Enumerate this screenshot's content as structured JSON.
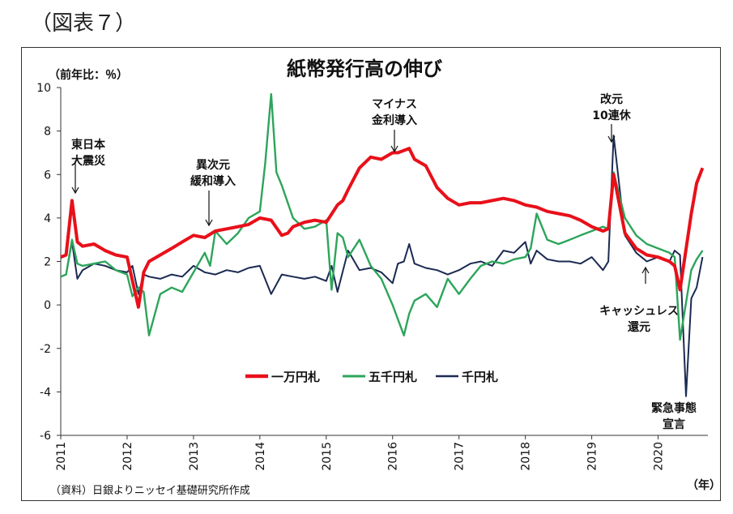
{
  "figure_label": "（図表７）",
  "chart_data": {
    "type": "line",
    "title": "紙幣発行高の伸び",
    "ylabel": "（前年比：％）",
    "xlabel": "（年）",
    "source": "（資料）日銀よりニッセイ基礎研究所作成",
    "ylim": [
      -6,
      10
    ],
    "yticks": [
      "10",
      "8",
      "6",
      "4",
      "2",
      "0",
      "-2",
      "-4",
      "-6"
    ],
    "xticks": [
      "2011",
      "2012",
      "2013",
      "2014",
      "2015",
      "2016",
      "2017",
      "2018",
      "2019",
      "2020"
    ],
    "xlim": [
      2011.0,
      2020.75
    ],
    "grid": false,
    "legend": {
      "placement": "lower-center",
      "entries": [
        "一万円札",
        "五千円札",
        "千円札"
      ]
    },
    "colors": {
      "10000": "#e8101a",
      "5000": "#2ca55a",
      "1000": "#1b2a52"
    },
    "series": [
      {
        "name": "一万円札",
        "x": [
          2011.0,
          2011.08,
          2011.17,
          2011.25,
          2011.33,
          2011.5,
          2011.67,
          2011.83,
          2012.0,
          2012.17,
          2012.25,
          2012.33,
          2012.5,
          2012.67,
          2012.83,
          2013.0,
          2013.17,
          2013.33,
          2013.5,
          2013.67,
          2013.83,
          2014.0,
          2014.17,
          2014.33,
          2014.42,
          2014.5,
          2014.67,
          2014.83,
          2015.0,
          2015.17,
          2015.25,
          2015.33,
          2015.5,
          2015.67,
          2015.83,
          2016.0,
          2016.08,
          2016.25,
          2016.33,
          2016.5,
          2016.67,
          2016.83,
          2017.0,
          2017.17,
          2017.33,
          2017.5,
          2017.67,
          2017.83,
          2018.0,
          2018.17,
          2018.33,
          2018.5,
          2018.67,
          2018.83,
          2019.0,
          2019.17,
          2019.25,
          2019.33,
          2019.5,
          2019.67,
          2019.83,
          2020.0,
          2020.17,
          2020.25,
          2020.33,
          2020.5,
          2020.58,
          2020.67
        ],
        "values": [
          2.2,
          2.3,
          4.8,
          2.9,
          2.7,
          2.8,
          2.5,
          2.3,
          2.2,
          -0.1,
          1.5,
          2.0,
          2.3,
          2.6,
          2.9,
          3.2,
          3.1,
          3.4,
          3.5,
          3.6,
          3.7,
          4.0,
          3.9,
          3.2,
          3.3,
          3.6,
          3.8,
          3.9,
          3.8,
          4.6,
          4.8,
          5.3,
          6.3,
          6.8,
          6.7,
          7.0,
          7.0,
          7.2,
          6.7,
          6.4,
          5.4,
          4.9,
          4.6,
          4.7,
          4.7,
          4.8,
          4.9,
          4.8,
          4.6,
          4.5,
          4.3,
          4.2,
          4.1,
          3.9,
          3.6,
          3.4,
          3.5,
          6.0,
          3.3,
          2.6,
          2.3,
          2.2,
          2.0,
          1.8,
          0.7,
          4.2,
          5.6,
          6.3
        ]
      },
      {
        "name": "五千円札",
        "x": [
          2011.0,
          2011.08,
          2011.17,
          2011.25,
          2011.33,
          2011.5,
          2011.67,
          2011.83,
          2012.0,
          2012.08,
          2012.17,
          2012.25,
          2012.33,
          2012.5,
          2012.67,
          2012.83,
          2013.0,
          2013.17,
          2013.25,
          2013.33,
          2013.5,
          2013.67,
          2013.83,
          2014.0,
          2014.08,
          2014.17,
          2014.25,
          2014.33,
          2014.5,
          2014.67,
          2014.83,
          2015.0,
          2015.08,
          2015.17,
          2015.25,
          2015.33,
          2015.5,
          2015.67,
          2015.83,
          2016.0,
          2016.17,
          2016.25,
          2016.33,
          2016.5,
          2016.67,
          2016.83,
          2017.0,
          2017.17,
          2017.33,
          2017.5,
          2017.67,
          2017.83,
          2018.0,
          2018.08,
          2018.17,
          2018.33,
          2018.5,
          2018.67,
          2018.83,
          2019.0,
          2019.17,
          2019.25,
          2019.33,
          2019.5,
          2019.67,
          2019.83,
          2020.0,
          2020.17,
          2020.25,
          2020.33,
          2020.5,
          2020.58,
          2020.67
        ],
        "values": [
          1.3,
          1.4,
          3.0,
          1.9,
          1.8,
          1.9,
          2.0,
          1.6,
          1.4,
          0.4,
          0.8,
          0.6,
          -1.4,
          0.5,
          0.8,
          0.6,
          1.5,
          2.4,
          1.8,
          3.4,
          2.8,
          3.3,
          4.0,
          4.3,
          6.5,
          9.7,
          6.1,
          5.5,
          4.0,
          3.5,
          3.6,
          3.9,
          0.7,
          3.3,
          3.1,
          2.2,
          3.0,
          1.8,
          1.2,
          0.0,
          -1.4,
          -0.4,
          0.2,
          0.5,
          -0.1,
          1.2,
          0.5,
          1.2,
          1.8,
          2.0,
          1.9,
          2.1,
          2.2,
          2.6,
          4.2,
          3.0,
          2.8,
          3.0,
          3.2,
          3.4,
          3.6,
          3.5,
          6.1,
          4.0,
          3.2,
          2.8,
          2.6,
          2.4,
          2.2,
          -1.6,
          1.6,
          2.1,
          2.5
        ]
      },
      {
        "name": "千円札",
        "x": [
          2011.0,
          2011.08,
          2011.17,
          2011.25,
          2011.33,
          2011.5,
          2011.67,
          2011.83,
          2012.0,
          2012.08,
          2012.17,
          2012.25,
          2012.33,
          2012.5,
          2012.67,
          2012.83,
          2013.0,
          2013.17,
          2013.33,
          2013.5,
          2013.67,
          2013.83,
          2014.0,
          2014.17,
          2014.33,
          2014.5,
          2014.67,
          2014.83,
          2015.0,
          2015.08,
          2015.17,
          2015.33,
          2015.5,
          2015.67,
          2015.83,
          2016.0,
          2016.08,
          2016.17,
          2016.25,
          2016.33,
          2016.5,
          2016.67,
          2016.83,
          2017.0,
          2017.17,
          2017.33,
          2017.5,
          2017.67,
          2017.83,
          2018.0,
          2018.08,
          2018.17,
          2018.33,
          2018.5,
          2018.67,
          2018.83,
          2019.0,
          2019.17,
          2019.25,
          2019.33,
          2019.5,
          2019.67,
          2019.83,
          2020.0,
          2020.17,
          2020.25,
          2020.33,
          2020.42,
          2020.5,
          2020.58,
          2020.67
        ],
        "values": [
          1.3,
          1.4,
          2.9,
          1.2,
          1.6,
          1.9,
          1.8,
          1.6,
          1.5,
          1.8,
          0.5,
          1.4,
          1.3,
          1.2,
          1.4,
          1.3,
          1.8,
          1.5,
          1.4,
          1.6,
          1.5,
          1.7,
          1.8,
          0.5,
          1.4,
          1.3,
          1.2,
          1.3,
          1.1,
          1.8,
          0.6,
          2.5,
          1.6,
          1.7,
          1.5,
          1.0,
          1.9,
          2.0,
          2.8,
          1.9,
          1.7,
          1.6,
          1.4,
          1.6,
          1.9,
          2.0,
          1.8,
          2.5,
          2.4,
          2.9,
          1.9,
          2.5,
          2.1,
          2.0,
          2.0,
          1.9,
          2.2,
          1.6,
          2.0,
          7.8,
          3.2,
          2.4,
          2.0,
          2.2,
          2.0,
          2.5,
          2.3,
          -4.2,
          0.3,
          0.8,
          2.2
        ]
      }
    ],
    "annotations": [
      {
        "lines": [
          "東日本",
          "大震災"
        ]
      },
      {
        "lines": [
          "異次元",
          "緩和導入"
        ]
      },
      {
        "lines": [
          "マイナス",
          "金利導入"
        ]
      },
      {
        "lines": [
          "改元",
          "10連休"
        ]
      },
      {
        "lines": [
          "キャッシュレス",
          "還元"
        ]
      },
      {
        "lines": [
          "緊急事態",
          "宣言"
        ]
      }
    ]
  }
}
